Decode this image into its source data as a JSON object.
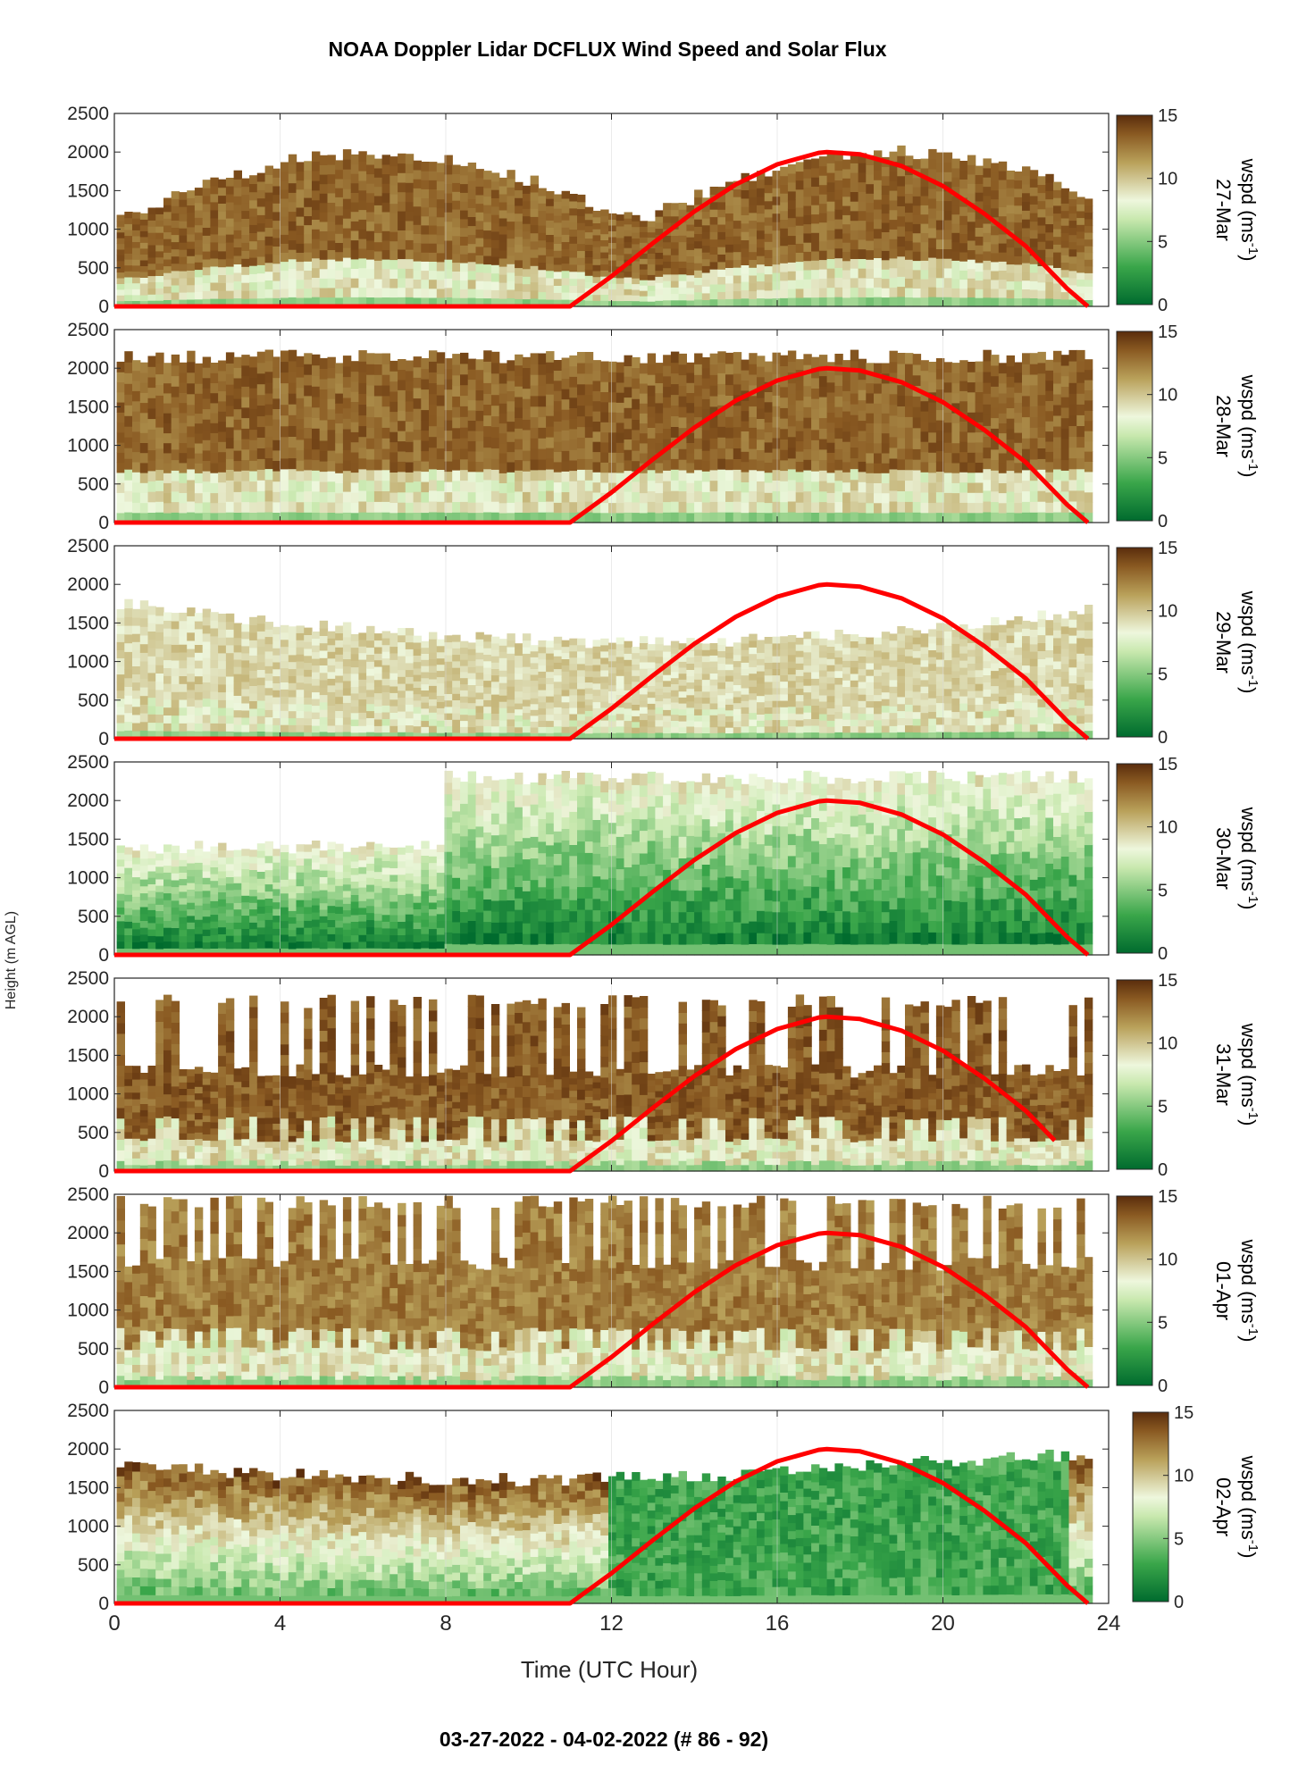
{
  "title": "NOAA Doppler Lidar DCFLUX Wind Speed and Solar Flux",
  "footer": "03-27-2022 - 04-02-2022   (# 86 - 92)",
  "colors": {
    "low": "#006b2e",
    "mid": "#e8f5d4",
    "high": "#5a2d0c",
    "solar_curve": "#ff0000"
  },
  "chart_data": {
    "type": "heatmap",
    "xlabel": "Time (UTC Hour)",
    "ylabel": "Height (m AGL)",
    "xlim": [
      0,
      24
    ],
    "ylim": [
      0,
      2500
    ],
    "xticks": [
      "0",
      "4",
      "8",
      "12",
      "16",
      "20",
      "24"
    ],
    "yticks": [
      "0",
      "500",
      "1000",
      "1500",
      "2000",
      "2500"
    ],
    "colorbar": {
      "label": "wspd (ms",
      "label_sup": "-1",
      "label_end": ")",
      "ticks": [
        "0",
        "5",
        "10",
        "15"
      ],
      "range": [
        0,
        15
      ]
    },
    "solar_flux_curve": {
      "x": [
        0,
        11,
        12,
        13,
        14,
        15,
        16,
        17,
        17.2,
        18,
        19,
        20,
        21,
        22,
        23,
        23.5,
        24
      ],
      "y": [
        0,
        0,
        390,
        820,
        1230,
        1580,
        1840,
        1990,
        2000,
        1970,
        1820,
        1560,
        1200,
        780,
        230,
        0,
        0
      ]
    },
    "panels": [
      {
        "day": "27-Mar",
        "curve_end": 23.5
      },
      {
        "day": "28-Mar",
        "curve_end": 23.5
      },
      {
        "day": "29-Mar",
        "curve_end": 23.5
      },
      {
        "day": "30-Mar",
        "curve_end": 23.5
      },
      {
        "day": "31-Mar",
        "curve_end": 22.7
      },
      {
        "day": "01-Apr",
        "curve_end": 23.5
      },
      {
        "day": "02-Apr",
        "curve_end": 23.5
      }
    ]
  }
}
